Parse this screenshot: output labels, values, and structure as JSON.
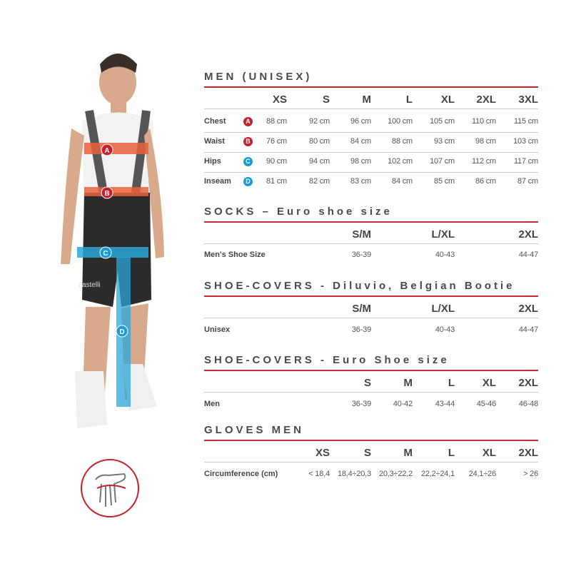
{
  "colors": {
    "accent_red": "#d2232a",
    "badge_red": "#c8202a",
    "badge_blue": "#1a9bd7",
    "band_orange": "#e8603c",
    "band_blue": "#2aa6d8"
  },
  "figure": {
    "brand_text": "castelli",
    "markers": [
      "A",
      "B",
      "C",
      "D"
    ]
  },
  "icons": {
    "hand": "hand-circumference-icon"
  },
  "sections": [
    {
      "title": "MEN (UNISEX)",
      "columns": [
        "XS",
        "S",
        "M",
        "L",
        "XL",
        "2XL",
        "3XL"
      ],
      "rows": [
        {
          "label": "Chest",
          "badge": "A",
          "badge_color": "red",
          "values": [
            "88 cm",
            "92 cm",
            "96 cm",
            "100 cm",
            "105 cm",
            "110 cm",
            "115 cm"
          ]
        },
        {
          "label": "Waist",
          "badge": "B",
          "badge_color": "red",
          "values": [
            "76 cm",
            "80 cm",
            "84 cm",
            "88 cm",
            "93 cm",
            "98 cm",
            "103 cm"
          ]
        },
        {
          "label": "Hips",
          "badge": "C",
          "badge_color": "blue",
          "values": [
            "90 cm",
            "94 cm",
            "98 cm",
            "102 cm",
            "107 cm",
            "112 cm",
            "117 cm"
          ]
        },
        {
          "label": "Inseam",
          "badge": "D",
          "badge_color": "blue",
          "values": [
            "81 cm",
            "82 cm",
            "83 cm",
            "84 cm",
            "85 cm",
            "86 cm",
            "87 cm"
          ]
        }
      ]
    },
    {
      "title": "SOCKS – Euro shoe size",
      "columns": [
        "S/M",
        "L/XL",
        "2XL"
      ],
      "rows": [
        {
          "label": "Men's Shoe Size",
          "values": [
            "36-39",
            "40-43",
            "44-47"
          ]
        }
      ]
    },
    {
      "title": "SHOE-COVERS - Diluvio, Belgian Bootie",
      "columns": [
        "S/M",
        "L/XL",
        "2XL"
      ],
      "rows": [
        {
          "label": "Unisex",
          "values": [
            "36-39",
            "40-43",
            "44-47"
          ]
        }
      ]
    },
    {
      "title": "SHOE-COVERS - Euro Shoe size",
      "columns": [
        "S",
        "M",
        "L",
        "XL",
        "2XL"
      ],
      "rows": [
        {
          "label": "Men",
          "values": [
            "36-39",
            "40-42",
            "43-44",
            "45-46",
            "46-48"
          ]
        }
      ]
    },
    {
      "title": "GLOVES MEN",
      "columns": [
        "XS",
        "S",
        "M",
        "L",
        "XL",
        "2XL"
      ],
      "rows": [
        {
          "label": "Circumference (cm)",
          "values": [
            "< 18,4",
            "18,4÷20,3",
            "20,3÷22,2",
            "22,2÷24,1",
            "24,1÷26",
            "> 26"
          ]
        }
      ]
    }
  ]
}
